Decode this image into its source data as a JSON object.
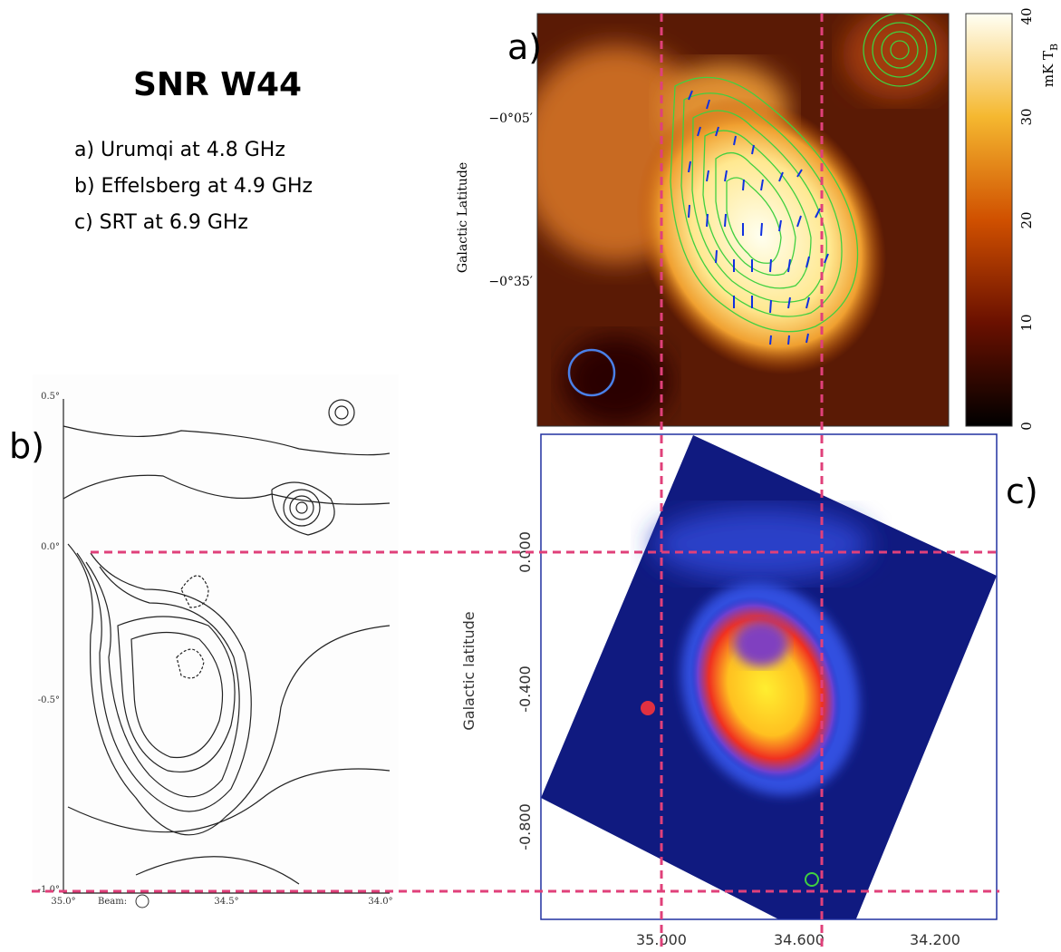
{
  "title": "SNR W44",
  "items": [
    "a) Urumqi at 4.8 GHz",
    "b) Effelsberg at 4.9 GHz",
    "c) SRT at 6.9 GHz"
  ],
  "panels": [
    {
      "label": "a)",
      "y_axis_label": "Galactic Latitude",
      "y_ticks": [
        "−0°05′",
        "−0°35′"
      ],
      "colorbar": {
        "ticks": [
          "0",
          "10",
          "20",
          "30",
          "40"
        ],
        "label": "mK T",
        "label_sub": "B"
      }
    },
    {
      "label": "b)",
      "y_ticks": [
        "0.5°",
        "0.0°",
        "-0.5°",
        "-1.0°"
      ],
      "x_ticks": [
        "35.0°",
        "34.5°",
        "34.0°"
      ],
      "beam_label": "Beam:"
    },
    {
      "label": "c)",
      "y_axis_label": "Galactic latitude",
      "y_ticks": [
        "0.000",
        "-0.400",
        "-0.800"
      ],
      "x_ticks": [
        "35.000",
        "34.600",
        "34.200"
      ]
    }
  ]
}
